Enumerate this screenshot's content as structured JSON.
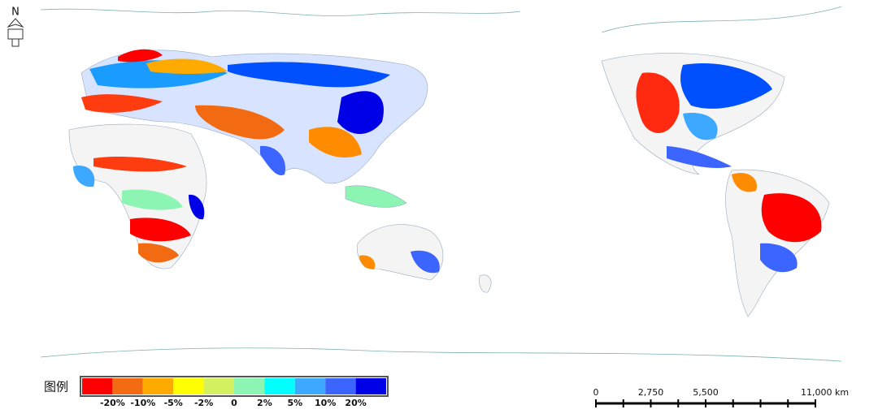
{
  "north_arrow": {
    "label": "N"
  },
  "legend": {
    "title": "图例",
    "colors": [
      "#ff0000",
      "#f26a12",
      "#ffaa00",
      "#ffff00",
      "#d2f060",
      "#8cf5b4",
      "#00ffff",
      "#3ca8ff",
      "#3c64ff",
      "#0000e6"
    ],
    "labels": [
      "-20%",
      "-10%",
      "-5%",
      "-2%",
      "0",
      "2%",
      "5%",
      "10%",
      "20%"
    ]
  },
  "scale_bar": {
    "labels": [
      "0",
      "2,750",
      "5,500",
      "11,000 km"
    ]
  }
}
